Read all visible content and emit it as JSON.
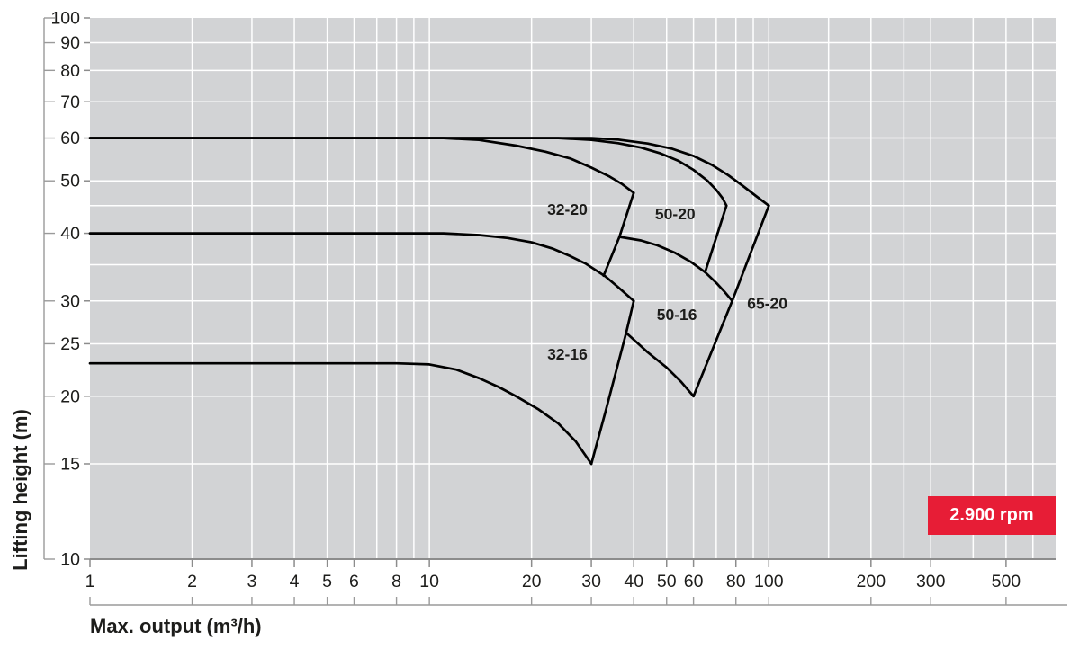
{
  "chart_data": {
    "type": "line",
    "scale": "log-log",
    "badge_label": "2.900 rpm",
    "x_axis": {
      "title": "Max. output (m³/h)",
      "min": 1,
      "max": 700,
      "tick_labels": [
        1,
        2,
        3,
        4,
        5,
        6,
        8,
        10,
        20,
        30,
        40,
        50,
        60,
        80,
        100,
        200,
        300,
        500
      ],
      "gridlines": [
        2,
        3,
        4,
        5,
        6,
        7,
        8,
        9,
        10,
        20,
        30,
        40,
        50,
        60,
        70,
        80,
        90,
        100,
        150,
        200,
        250,
        300,
        400,
        500,
        600
      ]
    },
    "y_axis": {
      "title": "Lifting height (m)",
      "min": 10,
      "max": 100,
      "tick_labels": [
        10,
        15,
        20,
        25,
        30,
        40,
        50,
        60,
        70,
        80,
        90,
        100
      ],
      "gridlines": [
        15,
        20,
        25,
        30,
        35,
        40,
        45,
        50,
        60,
        70,
        80,
        90
      ]
    },
    "series": [
      {
        "name": "32-20-top-envelope",
        "points": [
          [
            1,
            60
          ],
          [
            11,
            60
          ],
          [
            14,
            59.5
          ],
          [
            18,
            58.1
          ],
          [
            22,
            56.6
          ],
          [
            26,
            55
          ],
          [
            30,
            52.9
          ],
          [
            34,
            50.9
          ],
          [
            37,
            49.3
          ],
          [
            40,
            47.5
          ]
        ]
      },
      {
        "name": "50-20-top-envelope",
        "points": [
          [
            1,
            60
          ],
          [
            24,
            60
          ],
          [
            30,
            59.5
          ],
          [
            36,
            58.7
          ],
          [
            42,
            57.6
          ],
          [
            48,
            56.2
          ],
          [
            54,
            54.5
          ],
          [
            60,
            52.4
          ],
          [
            66,
            50
          ],
          [
            70,
            48.1
          ],
          [
            73,
            46.5
          ],
          [
            75,
            45
          ]
        ]
      },
      {
        "name": "65-20-top-envelope",
        "points": [
          [
            1,
            60
          ],
          [
            30,
            60
          ],
          [
            36,
            59.6
          ],
          [
            44,
            58.6
          ],
          [
            52,
            57.3
          ],
          [
            60,
            55.6
          ],
          [
            68,
            53.5
          ],
          [
            76,
            51.2
          ],
          [
            84,
            48.9
          ],
          [
            92,
            46.8
          ],
          [
            100,
            45
          ]
        ]
      },
      {
        "name": "32-20-right-edge",
        "points": [
          [
            40,
            47.5
          ],
          [
            36.3,
            39.4
          ],
          [
            32.6,
            33.4
          ]
        ]
      },
      {
        "name": "50-65-20-bottom-boundary",
        "points": [
          [
            36.3,
            39.4
          ],
          [
            42,
            38.8
          ],
          [
            47,
            38
          ],
          [
            53,
            36.8
          ],
          [
            59,
            35.4
          ],
          [
            64.9,
            33.9
          ],
          [
            70,
            32.4
          ],
          [
            74,
            31.2
          ],
          [
            78,
            30
          ]
        ]
      },
      {
        "name": "50-20-right-edge",
        "points": [
          [
            75,
            45
          ],
          [
            64.9,
            33.9
          ]
        ]
      },
      {
        "name": "65-20-right-edge",
        "points": [
          [
            100,
            45
          ],
          [
            78,
            30
          ]
        ]
      },
      {
        "name": "40-envelope",
        "points": [
          [
            1,
            40
          ],
          [
            11,
            40
          ],
          [
            14,
            39.7
          ],
          [
            17,
            39.2
          ],
          [
            20,
            38.5
          ],
          [
            23,
            37.5
          ],
          [
            26,
            36.3
          ],
          [
            29,
            35.1
          ],
          [
            33,
            33.3
          ],
          [
            36,
            31.8
          ],
          [
            40,
            30
          ]
        ]
      },
      {
        "name": "32-16-right-edge",
        "points": [
          [
            30,
            15
          ],
          [
            33,
            18.7
          ],
          [
            36,
            23
          ],
          [
            38,
            26.2
          ],
          [
            40,
            30
          ]
        ]
      },
      {
        "name": "50-16-bottom-boundary",
        "points": [
          [
            38,
            26.2
          ],
          [
            44,
            24.1
          ],
          [
            50,
            22.6
          ],
          [
            55,
            21.3
          ],
          [
            60,
            20
          ]
        ]
      },
      {
        "name": "50-16-right-edge",
        "points": [
          [
            60,
            20
          ],
          [
            78,
            30
          ]
        ]
      },
      {
        "name": "23-envelope",
        "points": [
          [
            1,
            23
          ],
          [
            8,
            23
          ],
          [
            10,
            22.9
          ],
          [
            12,
            22.4
          ],
          [
            14,
            21.6
          ],
          [
            16,
            20.8
          ],
          [
            18,
            20
          ],
          [
            21,
            18.9
          ],
          [
            24,
            17.8
          ],
          [
            27,
            16.5
          ],
          [
            30,
            15
          ]
        ]
      }
    ],
    "region_labels": [
      {
        "text": "32-20",
        "x": 25.5,
        "y": 44.3
      },
      {
        "text": "50-20",
        "x": 53,
        "y": 43.4
      },
      {
        "text": "65-20",
        "x": 99,
        "y": 29.7
      },
      {
        "text": "50-16",
        "x": 53.6,
        "y": 28.3
      },
      {
        "text": "32-16",
        "x": 25.5,
        "y": 23.9
      }
    ],
    "colors": {
      "plot_bg": "#d2d3d5",
      "grid": "#ffffff",
      "curve": "#000000",
      "axis": "#9a9a9a",
      "axis_dark": "#8c8c8c",
      "text": "#1d1d1b",
      "badge_bg": "#e71d36",
      "badge_text": "#ffffff"
    }
  }
}
